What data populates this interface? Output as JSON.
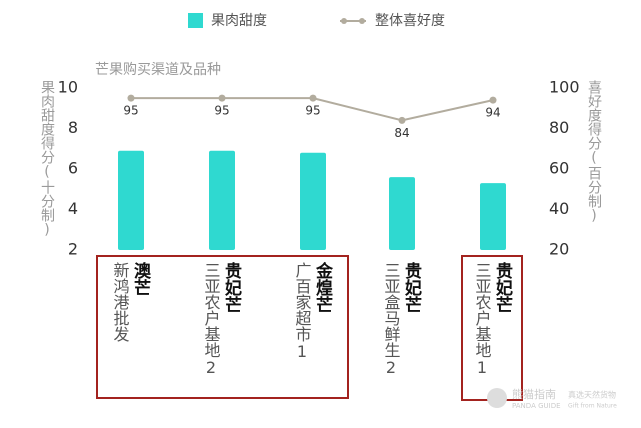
{
  "chart_data": {
    "type": "bar-line",
    "title": "芒果购买渠道及品种",
    "y_label": "果肉甜度得分(十分制)",
    "y2_label": "喜好度得分(百分制)",
    "categories": [
      "澳芒",
      "贵妃芒",
      "金煌芒",
      "贵妃芒",
      "贵妃芒"
    ],
    "channels": [
      "新鸿港批发",
      "三亚农户基地2",
      "广百家超市1",
      "三亚盒马鲜生2",
      "三亚农户基地1"
    ],
    "series": [
      {
        "name": "果肉甜度",
        "color": "#2fd9d0",
        "type": "bar",
        "values": [
          6.9,
          6.9,
          6.8,
          5.6,
          5.3
        ]
      },
      {
        "name": "整体喜好度",
        "color": "#b2ac9e",
        "type": "line",
        "axis": "y2",
        "values": [
          95,
          95,
          95,
          84,
          94
        ]
      }
    ],
    "ylim": [
      2,
      10
    ],
    "yticks": [
      2,
      4,
      6,
      8,
      10
    ],
    "y2lim": [
      20,
      100
    ],
    "y2ticks": [
      20,
      40,
      60,
      80,
      100
    ],
    "watermark": {
      "name": "熊猫指南",
      "name_en": "PANDA GUIDE",
      "slogan": "真选天然货物",
      "slogan_en": "Gift from Nature"
    }
  }
}
